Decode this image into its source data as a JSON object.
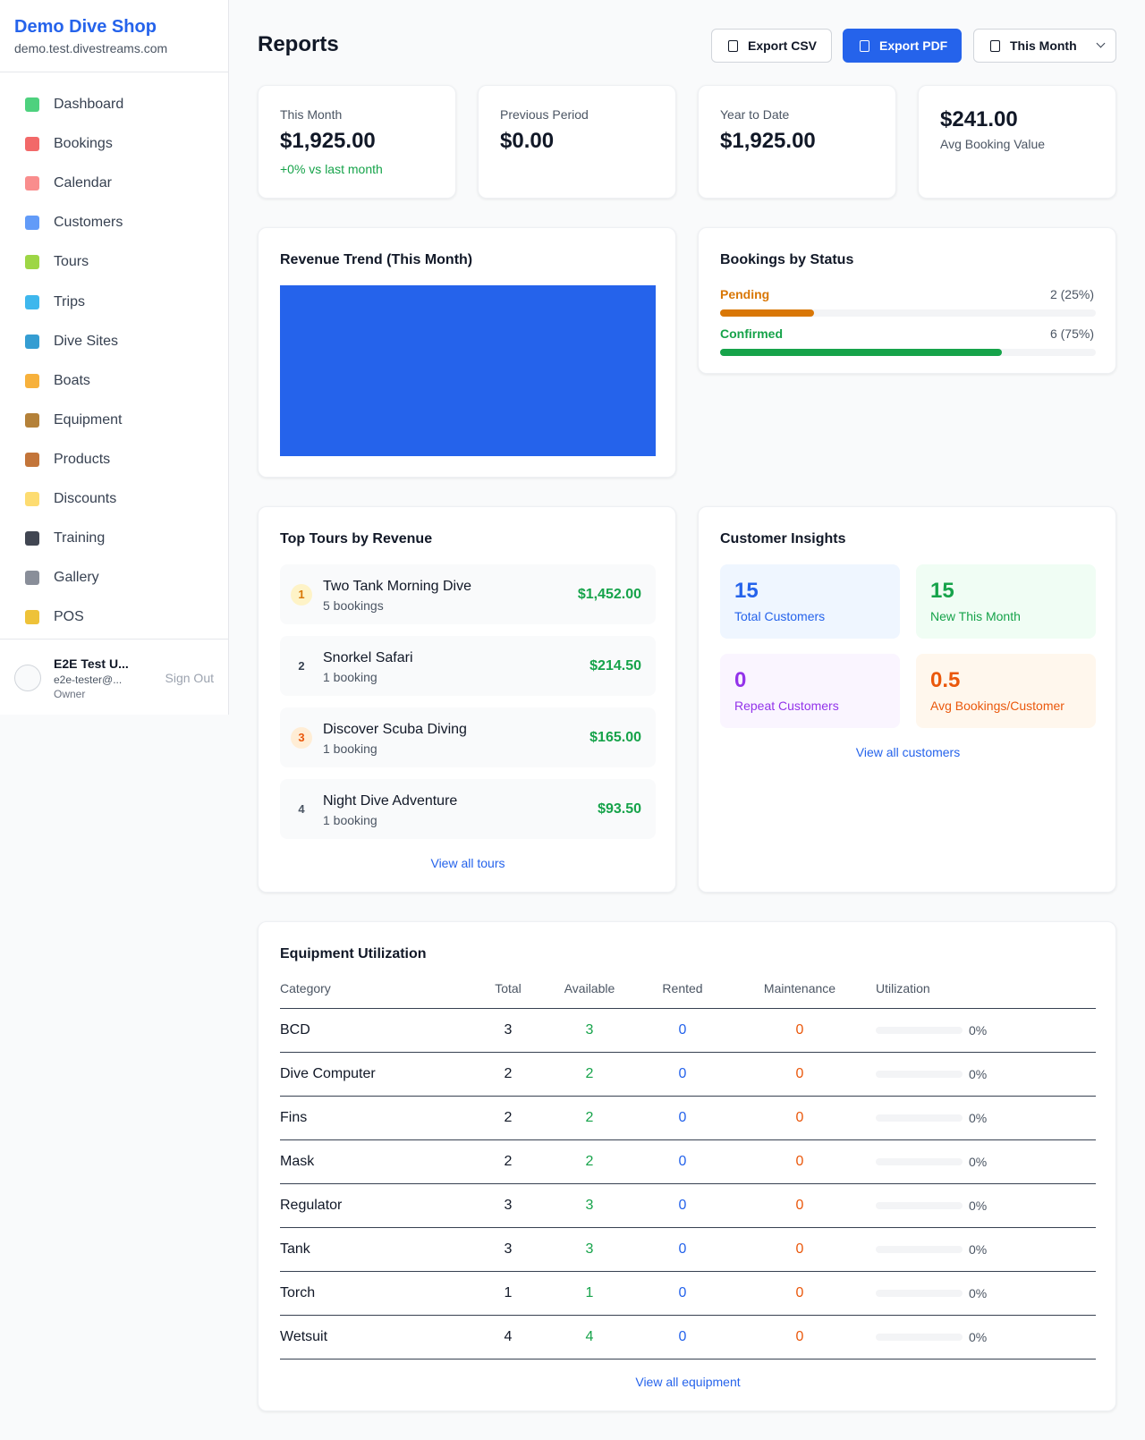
{
  "sidebar": {
    "shop_name": "Demo Dive Shop",
    "domain": "demo.test.divestreams.com",
    "nav": [
      "Dashboard",
      "Bookings",
      "Calendar",
      "Customers",
      "Tours",
      "Trips",
      "Dive Sites",
      "Boats",
      "Equipment",
      "Products",
      "Discounts",
      "Training",
      "Gallery",
      "POS"
    ],
    "user": {
      "name": "E2E Test U...",
      "email": "e2e-tester@...",
      "role": "Owner",
      "sign_out": "Sign Out"
    }
  },
  "header": {
    "title": "Reports",
    "export_csv": "Export CSV",
    "export_pdf": "Export PDF",
    "period": "This Month"
  },
  "stats": [
    {
      "label": "This Month",
      "value": "$1,925.00",
      "note": "+0% vs last month"
    },
    {
      "label": "Previous Period",
      "value": "$0.00"
    },
    {
      "label": "Year to Date",
      "value": "$1,925.00"
    },
    {
      "value": "$241.00",
      "label": "Avg Booking Value"
    }
  ],
  "revenue_trend": {
    "title": "Revenue Trend (This Month)"
  },
  "bookings_by_status": {
    "title": "Bookings by Status",
    "items": [
      {
        "label": "Pending",
        "count": "2 (25%)",
        "percent": 25
      },
      {
        "label": "Confirmed",
        "count": "6 (75%)",
        "percent": 75
      }
    ]
  },
  "top_tours": {
    "title": "Top Tours by Revenue",
    "items": [
      {
        "rank": "1",
        "name": "Two Tank Morning Dive",
        "bookings": "5 bookings",
        "revenue": "$1,452.00"
      },
      {
        "rank": "2",
        "name": "Snorkel Safari",
        "bookings": "1 booking",
        "revenue": "$214.50"
      },
      {
        "rank": "3",
        "name": "Discover Scuba Diving",
        "bookings": "1 booking",
        "revenue": "$165.00"
      },
      {
        "rank": "4",
        "name": "Night Dive Adventure",
        "bookings": "1 booking",
        "revenue": "$93.50"
      }
    ],
    "link": "View all tours"
  },
  "insights": {
    "title": "Customer Insights",
    "cards": [
      {
        "value": "15",
        "label": "Total Customers"
      },
      {
        "value": "15",
        "label": "New This Month"
      },
      {
        "value": "0",
        "label": "Repeat Customers"
      },
      {
        "value": "0.5",
        "label": "Avg Bookings/Customer"
      }
    ],
    "link": "View all customers"
  },
  "equipment": {
    "title": "Equipment Utilization",
    "columns": [
      "Category",
      "Total",
      "Available",
      "Rented",
      "Maintenance",
      "Utilization"
    ],
    "rows": [
      [
        "BCD",
        "3",
        "3",
        "0",
        "0",
        "0%"
      ],
      [
        "Dive Computer",
        "2",
        "2",
        "0",
        "0",
        "0%"
      ],
      [
        "Fins",
        "2",
        "2",
        "0",
        "0",
        "0%"
      ],
      [
        "Mask",
        "2",
        "2",
        "0",
        "0",
        "0%"
      ],
      [
        "Regulator",
        "3",
        "3",
        "0",
        "0",
        "0%"
      ],
      [
        "Tank",
        "3",
        "3",
        "0",
        "0",
        "0%"
      ],
      [
        "Torch",
        "1",
        "1",
        "0",
        "0",
        "0%"
      ],
      [
        "Wetsuit",
        "4",
        "4",
        "0",
        "0",
        "0%"
      ]
    ],
    "link": "View all equipment"
  }
}
